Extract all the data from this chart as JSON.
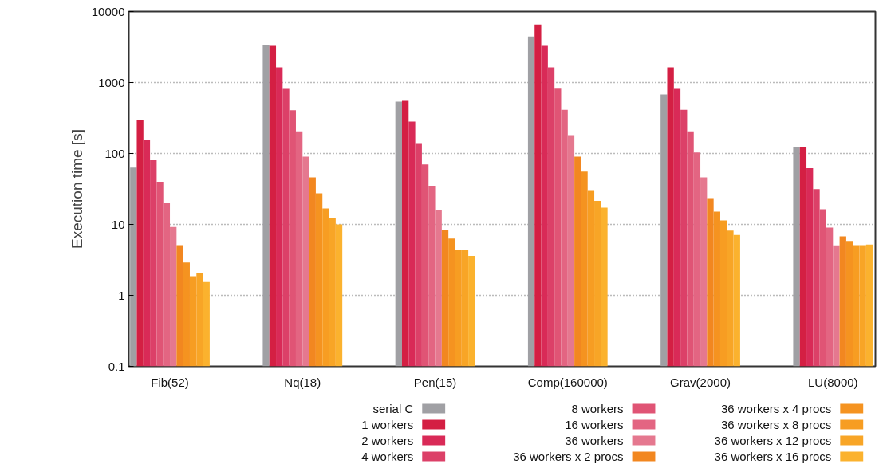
{
  "chart_data": {
    "type": "bar",
    "ylabel": "Execution time [s]",
    "categories": [
      "Fib(52)",
      "Nq(18)",
      "Pen(15)",
      "Comp(160000)",
      "Grav(2000)",
      "LU(8000)"
    ],
    "log": true,
    "ylim": [
      0.1,
      10000
    ],
    "yticks": [
      0.1,
      1,
      10,
      100,
      1000,
      10000
    ],
    "grid": "y",
    "legend": "bottom",
    "series": [
      {
        "name": "serial C",
        "color": "#a0a0a4",
        "values": [
          63,
          3380,
          537,
          4450,
          678,
          124
        ]
      },
      {
        "name": "1 workers",
        "color": "#d41f43",
        "values": [
          296,
          3290,
          552,
          6560,
          1635,
          124
        ]
      },
      {
        "name": "2 workers",
        "color": "#d92a57",
        "values": [
          155,
          1635,
          281,
          3290,
          813,
          62
        ]
      },
      {
        "name": "4 workers",
        "color": "#dc4068",
        "values": [
          80,
          813,
          140,
          1635,
          411,
          31.5
        ]
      },
      {
        "name": "8 workers",
        "color": "#e05475",
        "values": [
          40,
          407,
          70,
          820,
          205,
          16.3
        ]
      },
      {
        "name": "16 workers",
        "color": "#e36582",
        "values": [
          20,
          205,
          35,
          411,
          103,
          9.0
        ]
      },
      {
        "name": "36 workers",
        "color": "#e5788f",
        "values": [
          9.2,
          90,
          15.8,
          181,
          46,
          5.06
        ]
      },
      {
        "name": "36 workers x 2 procs",
        "color": "#f28720",
        "values": [
          5.1,
          46,
          8.3,
          90,
          23.5,
          6.8
        ]
      },
      {
        "name": "36 workers x 4 procs",
        "color": "#f59320",
        "values": [
          2.9,
          27.4,
          6.3,
          55.6,
          15.1,
          5.85
        ]
      },
      {
        "name": "36 workers x 8 procs",
        "color": "#f79d22",
        "values": [
          1.86,
          16.8,
          4.3,
          30.4,
          11.4,
          5.1
        ]
      },
      {
        "name": "36 workers x 12 procs",
        "color": "#f8a526",
        "values": [
          2.08,
          12.4,
          4.4,
          21.4,
          8.2,
          5.1
        ]
      },
      {
        "name": "36 workers x 16 procs",
        "color": "#fbb22e",
        "values": [
          1.54,
          10,
          3.6,
          17.2,
          7.1,
          5.2
        ]
      }
    ]
  }
}
